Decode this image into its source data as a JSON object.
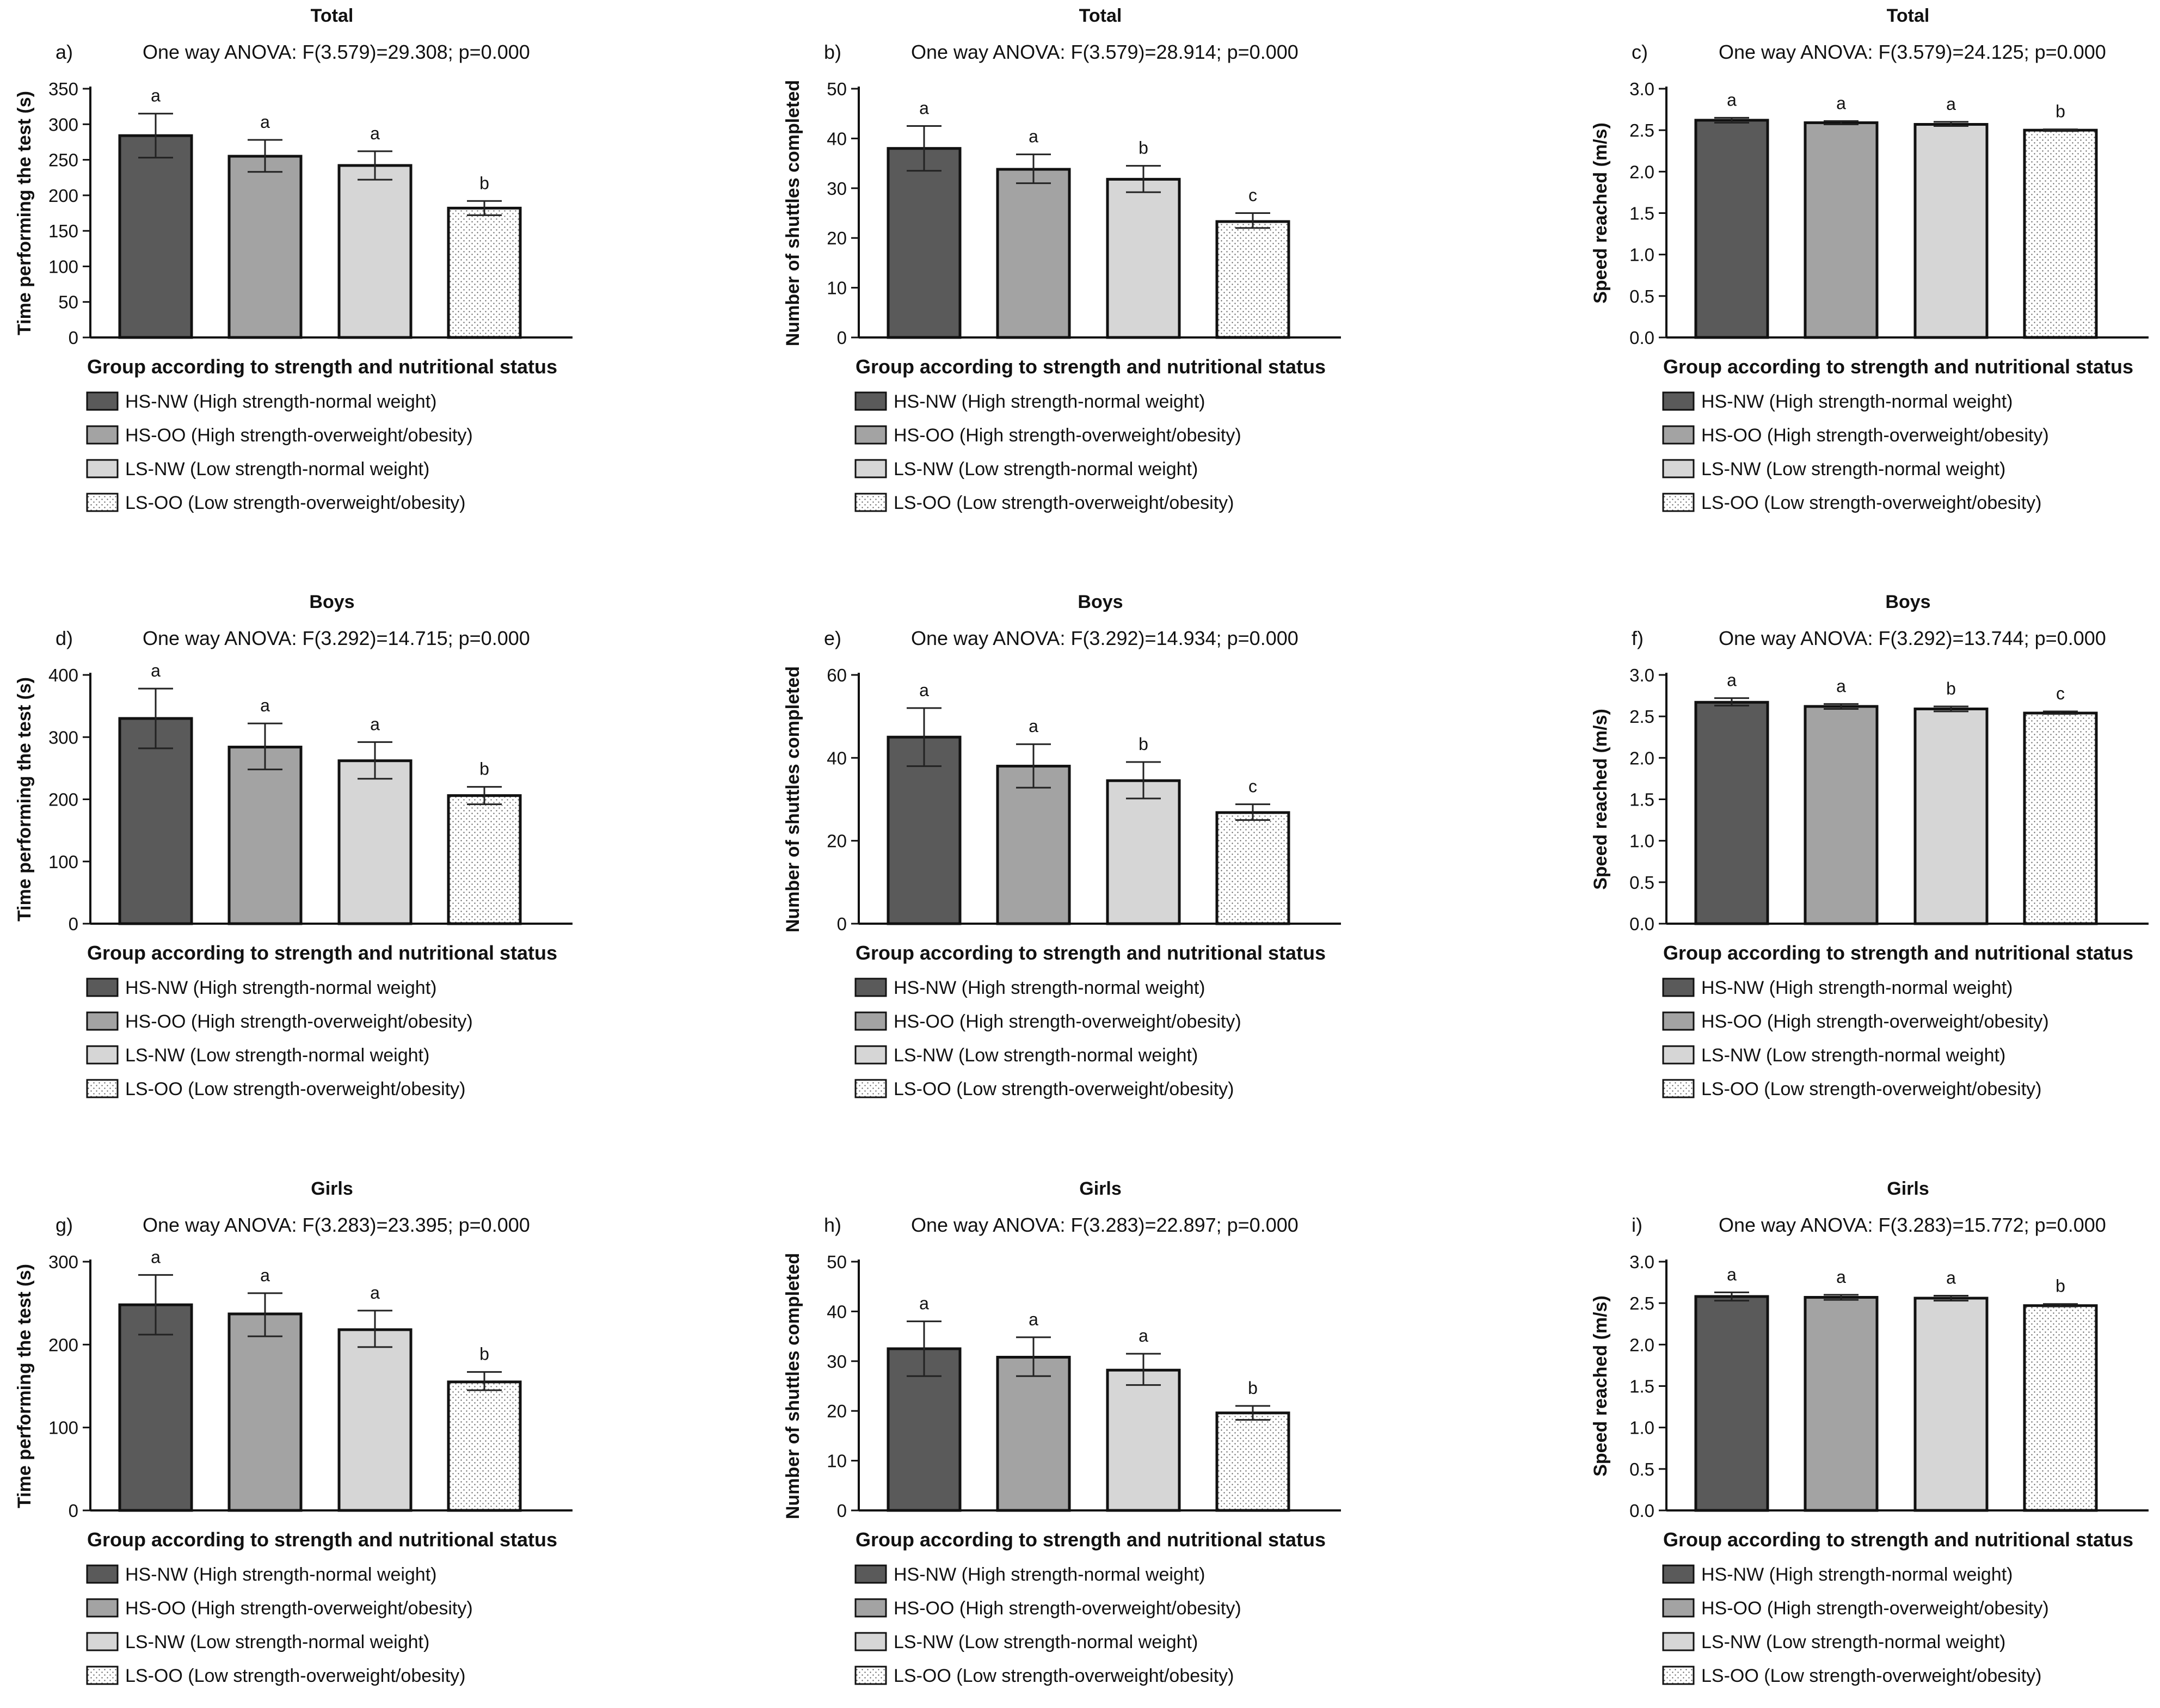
{
  "legend_entries": [
    "HS-NW (High strength-normal weight)",
    "HS-OO (High strength-overweight/obesity)",
    "LS-NW (Low strength-normal weight)",
    "LS-OO (Low strength-overweight/obesity)"
  ],
  "group_colors": [
    "#5a5a5a",
    "#a3a3a3",
    "#d6d6d6",
    "#ffffff"
  ],
  "chart_data": [
    {
      "type": "bar",
      "label": "a)",
      "title": "Total",
      "subtitle": "One way ANOVA: F(3.579)=29.308; p=0.000",
      "ylabel": "Time performing the test (s)",
      "xlabel": "Group according to strength and nutritional status",
      "ylim": [
        0,
        350
      ],
      "yticks": [
        "0",
        "50",
        "100",
        "150",
        "200",
        "250",
        "300",
        "350"
      ],
      "categories": [
        "HS-NW",
        "HS-OO",
        "LS-NW",
        "LS-OO"
      ],
      "values": [
        284,
        255,
        242,
        182
      ],
      "error": [
        [
          253,
          315
        ],
        [
          233,
          278
        ],
        [
          222,
          262
        ],
        [
          172,
          192
        ]
      ],
      "letters": [
        "a",
        "a",
        "a",
        "b"
      ]
    },
    {
      "type": "bar",
      "label": "b)",
      "title": "Total",
      "subtitle": "One way ANOVA: F(3.579)=28.914; p=0.000",
      "ylabel": "Number of shuttles completed",
      "xlabel": "Group according to strength and nutritional status",
      "ylim": [
        0,
        50
      ],
      "yticks": [
        "0",
        "10",
        "20",
        "30",
        "40",
        "50"
      ],
      "categories": [
        "HS-NW",
        "HS-OO",
        "LS-NW",
        "LS-OO"
      ],
      "values": [
        38,
        33.8,
        31.8,
        23.3
      ],
      "error": [
        [
          33.5,
          42.5
        ],
        [
          31,
          36.8
        ],
        [
          29.2,
          34.5
        ],
        [
          22,
          25
        ]
      ],
      "letters": [
        "a",
        "a",
        "b",
        "c"
      ]
    },
    {
      "type": "bar",
      "label": "c)",
      "title": "Total",
      "subtitle": "One way ANOVA: F(3.579)=24.125; p=0.000",
      "ylabel": "Speed reached (m/s)",
      "xlabel": "Group according to strength and nutritional status",
      "ylim": [
        0,
        3
      ],
      "yticks": [
        "0.0",
        "0.5",
        "1.0",
        "1.5",
        "2.0",
        "2.5",
        "3.0"
      ],
      "categories": [
        "HS-NW",
        "HS-OO",
        "LS-NW",
        "LS-OO"
      ],
      "values": [
        2.62,
        2.59,
        2.57,
        2.5
      ],
      "error": [
        [
          2.59,
          2.65
        ],
        [
          2.57,
          2.61
        ],
        [
          2.55,
          2.6
        ],
        [
          2.49,
          2.51
        ]
      ],
      "letters": [
        "a",
        "a",
        "a",
        "b"
      ]
    },
    {
      "type": "bar",
      "label": "d)",
      "title": "Boys",
      "subtitle": "One way ANOVA: F(3.292)=14.715; p=0.000",
      "ylabel": "Time performing the test (s)",
      "xlabel": "Group according to strength and nutritional status",
      "ylim": [
        0,
        400
      ],
      "yticks": [
        "0",
        "100",
        "200",
        "300",
        "400"
      ],
      "categories": [
        "HS-NW",
        "HS-OO",
        "LS-NW",
        "LS-OO"
      ],
      "values": [
        330,
        284,
        262,
        206
      ],
      "error": [
        [
          282,
          378
        ],
        [
          248,
          322
        ],
        [
          233,
          292
        ],
        [
          192,
          220
        ]
      ],
      "letters": [
        "a",
        "a",
        "a",
        "b"
      ]
    },
    {
      "type": "bar",
      "label": "e)",
      "title": "Boys",
      "subtitle": "One way ANOVA: F(3.292)=14.934; p=0.000",
      "ylabel": "Number of shuttles completed",
      "xlabel": "Group according to strength and nutritional status",
      "ylim": [
        0,
        60
      ],
      "yticks": [
        "0",
        "20",
        "40",
        "60"
      ],
      "categories": [
        "HS-NW",
        "HS-OO",
        "LS-NW",
        "LS-OO"
      ],
      "values": [
        45,
        38,
        34.5,
        26.8
      ],
      "error": [
        [
          38,
          52
        ],
        [
          32.8,
          43.3
        ],
        [
          30.2,
          39
        ],
        [
          25,
          28.8
        ]
      ],
      "letters": [
        "a",
        "a",
        "b",
        "c"
      ]
    },
    {
      "type": "bar",
      "label": "f)",
      "title": "Boys",
      "subtitle": "One way ANOVA: F(3.292)=13.744; p=0.000",
      "ylabel": "Speed reached (m/s)",
      "xlabel": "Group according to strength and nutritional status",
      "ylim": [
        0,
        3
      ],
      "yticks": [
        "0.0",
        "0.5",
        "1.0",
        "1.5",
        "2.0",
        "2.5",
        "3.0"
      ],
      "categories": [
        "HS-NW",
        "HS-OO",
        "LS-NW",
        "LS-OO"
      ],
      "values": [
        2.67,
        2.62,
        2.59,
        2.54
      ],
      "error": [
        [
          2.63,
          2.72
        ],
        [
          2.59,
          2.65
        ],
        [
          2.56,
          2.62
        ],
        [
          2.53,
          2.56
        ]
      ],
      "letters": [
        "a",
        "a",
        "b",
        "c"
      ]
    },
    {
      "type": "bar",
      "label": "g)",
      "title": "Girls",
      "subtitle": "One way ANOVA: F(3.283)=23.395; p=0.000",
      "ylabel": "Time performing the test (s)",
      "xlabel": "Group according to strength and nutritional status",
      "ylim": [
        0,
        300
      ],
      "yticks": [
        "0",
        "100",
        "200",
        "300"
      ],
      "categories": [
        "HS-NW",
        "HS-OO",
        "LS-NW",
        "LS-OO"
      ],
      "values": [
        248,
        237,
        218,
        155
      ],
      "error": [
        [
          212,
          284
        ],
        [
          210,
          262
        ],
        [
          197,
          241
        ],
        [
          145,
          167
        ]
      ],
      "letters": [
        "a",
        "a",
        "a",
        "b"
      ]
    },
    {
      "type": "bar",
      "label": "h)",
      "title": "Girls",
      "subtitle": "One way ANOVA: F(3.283)=22.897; p=0.000",
      "ylabel": "Number of shuttles completed",
      "xlabel": "Group according to strength and nutritional status",
      "ylim": [
        0,
        50
      ],
      "yticks": [
        "0",
        "10",
        "20",
        "30",
        "40",
        "50"
      ],
      "categories": [
        "HS-NW",
        "HS-OO",
        "LS-NW",
        "LS-OO"
      ],
      "values": [
        32.5,
        30.8,
        28.2,
        19.6
      ],
      "error": [
        [
          27,
          38
        ],
        [
          27,
          34.8
        ],
        [
          25.2,
          31.5
        ],
        [
          18.2,
          21
        ]
      ],
      "letters": [
        "a",
        "a",
        "a",
        "b"
      ]
    },
    {
      "type": "bar",
      "label": "i)",
      "title": "Girls",
      "subtitle": "One way ANOVA: F(3.283)=15.772; p=0.000",
      "ylabel": "Speed reached (m/s)",
      "xlabel": "Group according to strength and nutritional status",
      "ylim": [
        0,
        3
      ],
      "yticks": [
        "0.0",
        "0.5",
        "1.0",
        "1.5",
        "2.0",
        "2.5",
        "3.0"
      ],
      "categories": [
        "HS-NW",
        "HS-OO",
        "LS-NW",
        "LS-OO"
      ],
      "values": [
        2.58,
        2.57,
        2.56,
        2.47
      ],
      "error": [
        [
          2.53,
          2.63
        ],
        [
          2.54,
          2.6
        ],
        [
          2.53,
          2.59
        ],
        [
          2.46,
          2.49
        ]
      ],
      "letters": [
        "a",
        "a",
        "a",
        "b"
      ]
    }
  ]
}
